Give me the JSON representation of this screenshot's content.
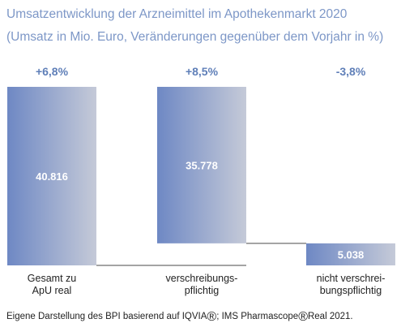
{
  "title": "Umsatzentwicklung der Arzneimittel im Apothekenmarkt 2020",
  "subtitle": "(Umsatz in Mio. Euro, Veränderungen gegenüber dem Vorjahr in %)",
  "source": {
    "part1": "Eigene Darstellung des BPI basierend auf IQVIA",
    "reg1": "®",
    "part2": "; IMS Pharmascope",
    "reg2": "®",
    "part3": "Real 2021."
  },
  "colors": {
    "title": "#7d97c7",
    "change_labels": "#5f7fb8",
    "bar_gradient_left": "#6e88c4",
    "bar_gradient_right": "#c5cad8",
    "connector": "#4a4a4a",
    "value_labels": "#ffffff"
  },
  "chart_data": {
    "type": "bar",
    "subtype": "waterfall",
    "categories": [
      [
        "Gesamt zu",
        "ApU real"
      ],
      [
        "verschreibungs-",
        "pflichtig"
      ],
      [
        "nicht verschrei-",
        "bungspflichtig"
      ]
    ],
    "values": [
      40816,
      35778,
      5038
    ],
    "value_labels": [
      "40.816",
      "35.778",
      "5.038"
    ],
    "changes": [
      "+6,8%",
      "+8,5%",
      "-3,8%"
    ],
    "bar_bases": [
      0,
      5038,
      0
    ],
    "ylim": [
      0,
      40816
    ],
    "grid": false,
    "legend": false,
    "title": "",
    "xlabel": "",
    "ylabel": ""
  }
}
